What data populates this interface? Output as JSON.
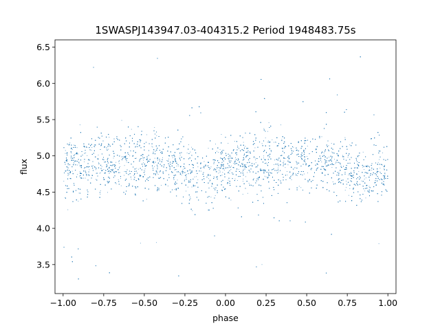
{
  "chart_data": {
    "type": "scatter",
    "title": "1SWASPJ143947.03-404315.2 Period 1948483.75s",
    "xlabel": "phase",
    "ylabel": "flux",
    "xlim": [
      -1.05,
      1.05
    ],
    "ylim": [
      3.1,
      6.6
    ],
    "grid": false,
    "legend": "none",
    "point_color": "#1f77b4",
    "x_ticks": [
      {
        "value": -1.0,
        "label": "−1.00"
      },
      {
        "value": -0.75,
        "label": "−0.75"
      },
      {
        "value": -0.5,
        "label": "−0.50"
      },
      {
        "value": -0.25,
        "label": "−0.25"
      },
      {
        "value": 0.0,
        "label": "0.00"
      },
      {
        "value": 0.25,
        "label": "0.25"
      },
      {
        "value": 0.5,
        "label": "0.50"
      },
      {
        "value": 0.75,
        "label": "0.75"
      },
      {
        "value": 1.0,
        "label": "1.00"
      }
    ],
    "y_ticks": [
      {
        "value": 3.5,
        "label": "3.5"
      },
      {
        "value": 4.0,
        "label": "4.0"
      },
      {
        "value": 4.5,
        "label": "4.5"
      },
      {
        "value": 5.0,
        "label": "5.0"
      },
      {
        "value": 5.5,
        "label": "5.5"
      },
      {
        "value": 6.0,
        "label": "6.0"
      },
      {
        "value": 6.5,
        "label": "6.5"
      }
    ],
    "series": [
      {
        "phase_range": [
          -1.0,
          1.0
        ],
        "baseline_flux": 4.9,
        "flux_dip_center_phase": [
          -0.15,
          0.85
        ],
        "flux_dip_min": 4.72,
        "core_scatter_range": [
          4.4,
          5.3
        ],
        "outlier_flux_range": [
          3.25,
          6.4
        ]
      }
    ]
  }
}
